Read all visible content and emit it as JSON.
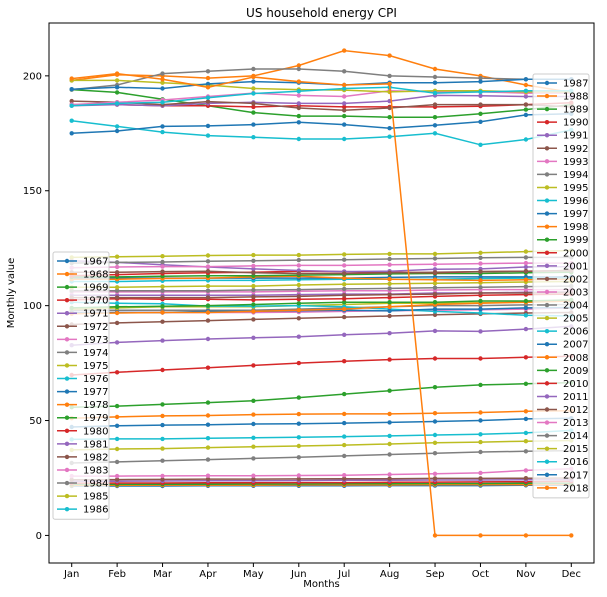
{
  "chart_data": {
    "type": "line",
    "title": "US household energy CPI",
    "xlabel": "Months",
    "ylabel": "Monthly value",
    "categories": [
      "Jan",
      "Feb",
      "Mar",
      "Apr",
      "May",
      "Jun",
      "Jul",
      "Aug",
      "Sep",
      "Oct",
      "Nov",
      "Dec"
    ],
    "xlim": [
      -0.5,
      11.5
    ],
    "ylim": [
      -12,
      223
    ],
    "yticks": [
      0,
      50,
      100,
      150,
      200
    ],
    "grid": false,
    "legend_placement": [
      "left",
      "right"
    ],
    "colors": [
      "#1f77b4",
      "#ff7f0e",
      "#2ca02c",
      "#d62728",
      "#9467bd",
      "#8c564b",
      "#e377c2",
      "#7f7f7f",
      "#bcbd22",
      "#17becf"
    ],
    "series": [
      {
        "name": "1967",
        "values": [
          21.5,
          21.5,
          21.5,
          21.6,
          21.6,
          21.6,
          21.6,
          21.7,
          21.7,
          21.7,
          21.8,
          21.8
        ]
      },
      {
        "name": "1968",
        "values": [
          21.8,
          21.8,
          21.9,
          21.9,
          21.9,
          22.0,
          22.0,
          22.0,
          22.1,
          22.1,
          22.1,
          22.2
        ]
      },
      {
        "name": "1969",
        "values": [
          22.2,
          22.2,
          22.3,
          22.3,
          22.4,
          22.4,
          22.5,
          22.5,
          22.6,
          22.6,
          22.7,
          22.7
        ]
      },
      {
        "name": "1970",
        "values": [
          22.7,
          22.8,
          22.8,
          22.9,
          22.9,
          23.0,
          23.0,
          23.1,
          23.2,
          23.3,
          23.4,
          23.5
        ]
      },
      {
        "name": "1971",
        "values": [
          23.5,
          23.6,
          23.7,
          23.8,
          23.8,
          23.9,
          24.0,
          24.0,
          24.1,
          24.1,
          24.2,
          24.2
        ]
      },
      {
        "name": "1972",
        "values": [
          24.2,
          24.3,
          24.4,
          24.5,
          24.5,
          24.6,
          24.7,
          24.7,
          24.8,
          24.8,
          24.9,
          25.0
        ]
      },
      {
        "name": "1973",
        "values": [
          25.8,
          25.8,
          25.9,
          26.0,
          26.0,
          26.1,
          26.2,
          26.5,
          26.8,
          27.2,
          28.3,
          29.0
        ]
      },
      {
        "name": "1974",
        "values": [
          31.5,
          32.0,
          32.5,
          33.0,
          33.5,
          34.0,
          34.6,
          35.2,
          35.8,
          36.3,
          36.6,
          36.9
        ]
      },
      {
        "name": "1975",
        "values": [
          37.2,
          37.6,
          37.8,
          38.2,
          38.6,
          38.9,
          39.3,
          39.8,
          40.3,
          40.6,
          41.0,
          41.3
        ]
      },
      {
        "name": "1976",
        "values": [
          41.8,
          42.0,
          42.0,
          42.3,
          42.5,
          42.7,
          43.0,
          43.3,
          43.7,
          44.0,
          44.6,
          45.7
        ]
      },
      {
        "name": "1977",
        "values": [
          47.2,
          47.7,
          48.0,
          48.2,
          48.5,
          48.6,
          48.9,
          49.2,
          49.6,
          50.0,
          50.7,
          51.0
        ]
      },
      {
        "name": "1978",
        "values": [
          51.0,
          51.6,
          52.0,
          52.2,
          52.6,
          52.8,
          52.9,
          52.9,
          53.2,
          53.5,
          54.0,
          54.3
        ]
      },
      {
        "name": "1979",
        "values": [
          55.8,
          56.3,
          57.0,
          57.8,
          58.6,
          60.0,
          61.5,
          63.0,
          64.5,
          65.5,
          66.0,
          66.5
        ]
      },
      {
        "name": "1980",
        "values": [
          69.8,
          71.0,
          72.0,
          73.0,
          74.0,
          75.0,
          75.8,
          76.5,
          77.0,
          77.0,
          77.5,
          78.0
        ]
      },
      {
        "name": "1981",
        "values": [
          82.8,
          84.0,
          84.8,
          85.5,
          86.0,
          86.5,
          87.3,
          88.0,
          89.0,
          88.8,
          89.8,
          91.0
        ]
      },
      {
        "name": "1982",
        "values": [
          91.8,
          92.5,
          93.0,
          93.5,
          94.0,
          94.5,
          95.0,
          95.5,
          96.0,
          96.4,
          96.8,
          97.0
        ]
      },
      {
        "name": "1983",
        "values": [
          97.0,
          97.0,
          97.0,
          97.0,
          97.0,
          97.2,
          97.5,
          97.8,
          98.0,
          98.2,
          98.5,
          99.0
        ]
      },
      {
        "name": "1984",
        "values": [
          98.0,
          98.0,
          98.0,
          98.0,
          98.0,
          98.5,
          99.0,
          99.5,
          100.0,
          100.0,
          100.3,
          100.5
        ]
      },
      {
        "name": "1985",
        "values": [
          98.5,
          99.0,
          99.5,
          99.5,
          99.5,
          100.0,
          100.5,
          101.0,
          101.0,
          101.3,
          101.5,
          102.0
        ]
      },
      {
        "name": "1986",
        "values": [
          101.5,
          101.0,
          100.8,
          99.8,
          99.8,
          100.0,
          99.5,
          98.5,
          97.5,
          96.8,
          95.8,
          95.5
        ]
      },
      {
        "name": "1987",
        "values": [
          97.0,
          97.0,
          97.0,
          97.5,
          97.5,
          97.8,
          98.0,
          97.7,
          98.5,
          98.5,
          99.0,
          99.2
        ]
      },
      {
        "name": "1988",
        "values": [
          96.5,
          96.8,
          97.0,
          97.0,
          97.5,
          98.0,
          98.5,
          99.5,
          100.5,
          101.0,
          101.5,
          102.0
        ]
      },
      {
        "name": "1989",
        "values": [
          99.0,
          99.5,
          99.7,
          100.0,
          100.5,
          101.0,
          101.5,
          101.5,
          101.5,
          102.0,
          102.0,
          102.5
        ]
      },
      {
        "name": "1990",
        "values": [
          102.5,
          103.0,
          102.8,
          102.8,
          102.5,
          102.8,
          103.0,
          103.5,
          104.0,
          104.5,
          104.8,
          105.0
        ]
      },
      {
        "name": "1991",
        "values": [
          104.5,
          104.5,
          104.5,
          104.5,
          104.5,
          104.8,
          105.0,
          105.0,
          105.5,
          105.5,
          105.8,
          106.0
        ]
      },
      {
        "name": "1992",
        "values": [
          103.5,
          103.5,
          103.5,
          103.5,
          103.8,
          104.0,
          104.5,
          104.8,
          105.0,
          105.5,
          105.5,
          105.8
        ]
      },
      {
        "name": "1993",
        "values": [
          106.0,
          106.0,
          106.0,
          106.0,
          106.0,
          106.3,
          106.5,
          106.5,
          106.8,
          107.0,
          107.0,
          107.0
        ]
      },
      {
        "name": "1994",
        "values": [
          106.5,
          106.5,
          106.5,
          106.5,
          106.8,
          107.0,
          107.3,
          107.5,
          107.8,
          108.0,
          108.3,
          108.5
        ]
      },
      {
        "name": "1995",
        "values": [
          108.0,
          108.0,
          108.3,
          108.5,
          108.5,
          109.0,
          109.3,
          109.5,
          109.7,
          110.0,
          110.3,
          110.5
        ]
      },
      {
        "name": "1996",
        "values": [
          110.5,
          110.5,
          110.8,
          111.0,
          111.0,
          111.3,
          111.5,
          111.5,
          111.5,
          111.8,
          112.0,
          112.0
        ]
      },
      {
        "name": "1997",
        "values": [
          112.0,
          112.0,
          112.0,
          112.0,
          112.0,
          112.0,
          112.0,
          112.3,
          112.5,
          112.5,
          112.5,
          112.5
        ]
      },
      {
        "name": "1998",
        "values": [
          111.5,
          111.5,
          111.8,
          112.0,
          112.5,
          112.8,
          112.0,
          111.5,
          111.3,
          111.0,
          111.3,
          111.5
        ]
      },
      {
        "name": "1999",
        "values": [
          112.5,
          112.5,
          112.8,
          113.0,
          113.0,
          113.3,
          113.5,
          113.8,
          114.0,
          114.0,
          114.3,
          114.5
        ]
      },
      {
        "name": "2000",
        "values": [
          113.0,
          113.5,
          114.0,
          114.3,
          114.5,
          115.0,
          114.8,
          114.5,
          114.3,
          114.8,
          115.0,
          115.3
        ]
      },
      {
        "name": "2001",
        "values": [
          119.5,
          118.8,
          117.8,
          116.8,
          116.0,
          115.3,
          114.8,
          115.0,
          115.8,
          116.0,
          116.8,
          117.0
        ]
      },
      {
        "name": "2002",
        "values": [
          114.5,
          114.5,
          114.8,
          115.0,
          114.3,
          114.0,
          114.0,
          114.3,
          114.5,
          114.8,
          115.0,
          115.3
        ]
      },
      {
        "name": "2003",
        "values": [
          116.5,
          116.8,
          117.0,
          117.0,
          117.3,
          117.5,
          117.5,
          117.8,
          118.0,
          118.3,
          118.5,
          118.5
        ]
      },
      {
        "name": "2004",
        "values": [
          118.5,
          118.8,
          119.0,
          119.3,
          119.5,
          119.8,
          120.0,
          120.3,
          120.5,
          120.8,
          121.0,
          121.0
        ]
      },
      {
        "name": "2005",
        "values": [
          121.0,
          121.3,
          121.5,
          121.8,
          122.0,
          122.0,
          122.3,
          122.5,
          122.5,
          123.0,
          123.5,
          124.0
        ]
      },
      {
        "name": "2006",
        "values": [
          180.5,
          178.0,
          175.5,
          174.0,
          173.3,
          172.5,
          172.5,
          173.5,
          175.0,
          170.0,
          172.3,
          176.5
        ]
      },
      {
        "name": "2007",
        "values": [
          175.0,
          176.0,
          178.0,
          178.2,
          178.8,
          179.8,
          178.8,
          177.2,
          178.5,
          180.0,
          183.0,
          183.5
        ]
      },
      {
        "name": "2008",
        "values": [
          198.0,
          200.5,
          200.0,
          199.0,
          200.0,
          204.5,
          211.0,
          208.8,
          203.0,
          200.0,
          196.0,
          192.8
        ]
      },
      {
        "name": "2009",
        "values": [
          194.0,
          192.8,
          189.8,
          187.0,
          184.0,
          182.5,
          182.5,
          182.0,
          182.0,
          183.5,
          185.3,
          187.5
        ]
      },
      {
        "name": "2010",
        "values": [
          187.5,
          187.5,
          187.0,
          187.0,
          186.5,
          187.0,
          186.5,
          186.5,
          186.5,
          186.8,
          187.5,
          188.3
        ]
      },
      {
        "name": "2011",
        "values": [
          187.0,
          187.5,
          187.0,
          188.0,
          188.5,
          188.0,
          188.0,
          189.0,
          191.5,
          191.3,
          191.0,
          191.0
        ]
      },
      {
        "name": "2012",
        "values": [
          189.0,
          188.5,
          187.5,
          188.8,
          188.0,
          186.0,
          185.0,
          186.0,
          187.5,
          187.5,
          187.5,
          186.5
        ]
      },
      {
        "name": "2013",
        "values": [
          187.5,
          188.5,
          189.5,
          191.0,
          192.5,
          191.5,
          191.0,
          193.5,
          193.0,
          193.0,
          192.5,
          192.5
        ]
      },
      {
        "name": "2014",
        "values": [
          194.0,
          196.0,
          201.0,
          202.0,
          203.0,
          203.0,
          202.0,
          200.0,
          199.5,
          199.0,
          198.5,
          198.5
        ]
      },
      {
        "name": "2015",
        "values": [
          198.0,
          198.0,
          197.0,
          196.0,
          194.5,
          194.0,
          193.8,
          193.0,
          193.5,
          193.5,
          193.0,
          193.0
        ]
      },
      {
        "name": "2016",
        "values": [
          187.0,
          188.0,
          188.5,
          190.5,
          192.3,
          193.3,
          194.5,
          195.0,
          192.5,
          193.0,
          193.5,
          193.5
        ]
      },
      {
        "name": "2017",
        "values": [
          194.2,
          195.0,
          194.5,
          196.5,
          197.5,
          197.0,
          196.0,
          197.0,
          197.0,
          197.5,
          198.5,
          198.5
        ]
      },
      {
        "name": "2018",
        "values": [
          198.8,
          201.0,
          198.5,
          195.0,
          199.5,
          197.5,
          196.0,
          196.5,
          0.0,
          0.0,
          0.0,
          0.0
        ]
      }
    ]
  }
}
